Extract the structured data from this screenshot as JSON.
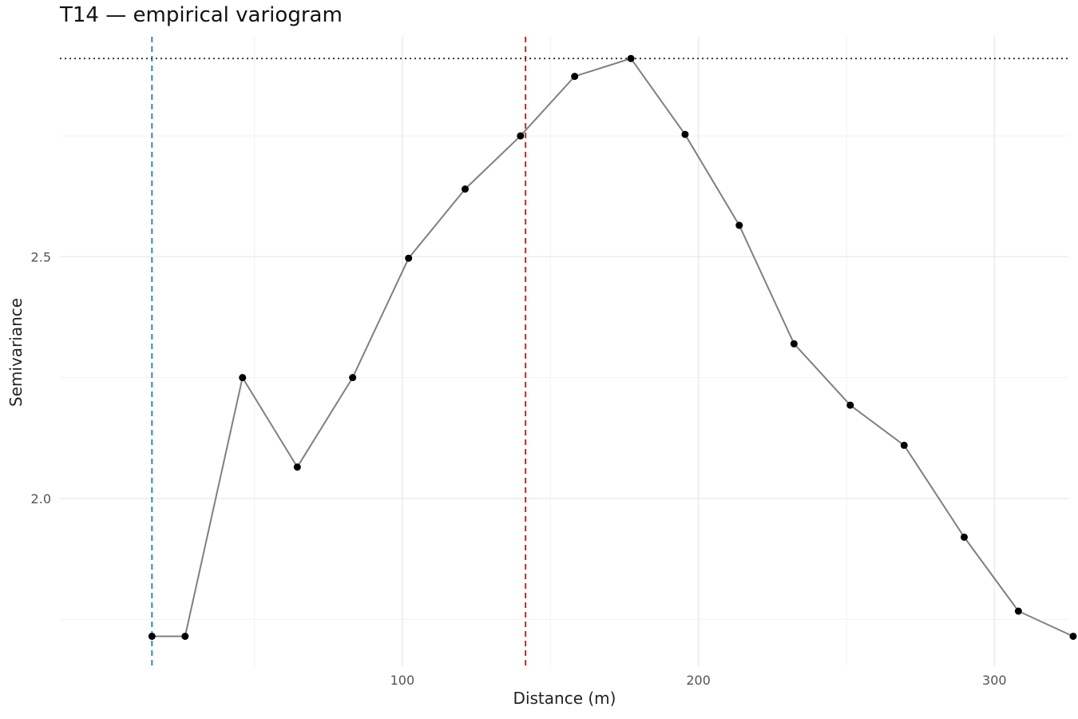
{
  "chart_data": {
    "type": "line",
    "title": "T14 — empirical variogram",
    "xlabel": "Distance (m)",
    "ylabel": "Semivariance",
    "xlim": [
      -15.7,
      325
    ],
    "ylim": [
      1.653,
      2.955
    ],
    "x_ticks": [
      100,
      200,
      300
    ],
    "y_ticks": [
      2.0,
      2.5
    ],
    "x_tick_labels": [
      "100",
      "200",
      "300"
    ],
    "y_tick_labels": [
      "2.0",
      "2.5"
    ],
    "grid": true,
    "x": [
      15.4,
      26.6,
      46,
      64.5,
      83.2,
      102.1,
      121.2,
      139.9,
      158.2,
      177.2,
      195.5,
      213.8,
      232.3,
      251.3,
      269.5,
      289.8,
      308.1,
      326.6
    ],
    "y": [
      1.715,
      1.715,
      2.25,
      2.065,
      2.25,
      2.497,
      2.64,
      2.75,
      2.873,
      2.91,
      2.753,
      2.565,
      2.32,
      2.193,
      2.11,
      1.92,
      1.767,
      1.715
    ],
    "reference_lines": [
      {
        "orientation": "vertical",
        "x": 15.4,
        "style": "dashed",
        "color": "#2b8cbe"
      },
      {
        "orientation": "vertical",
        "x": 141.6,
        "style": "dashed",
        "color": "#e41a1c"
      },
      {
        "orientation": "horizontal",
        "y": 2.91,
        "style": "dotted",
        "color": "#222222"
      }
    ],
    "line_color": "#808080",
    "point_color": "#000000"
  }
}
